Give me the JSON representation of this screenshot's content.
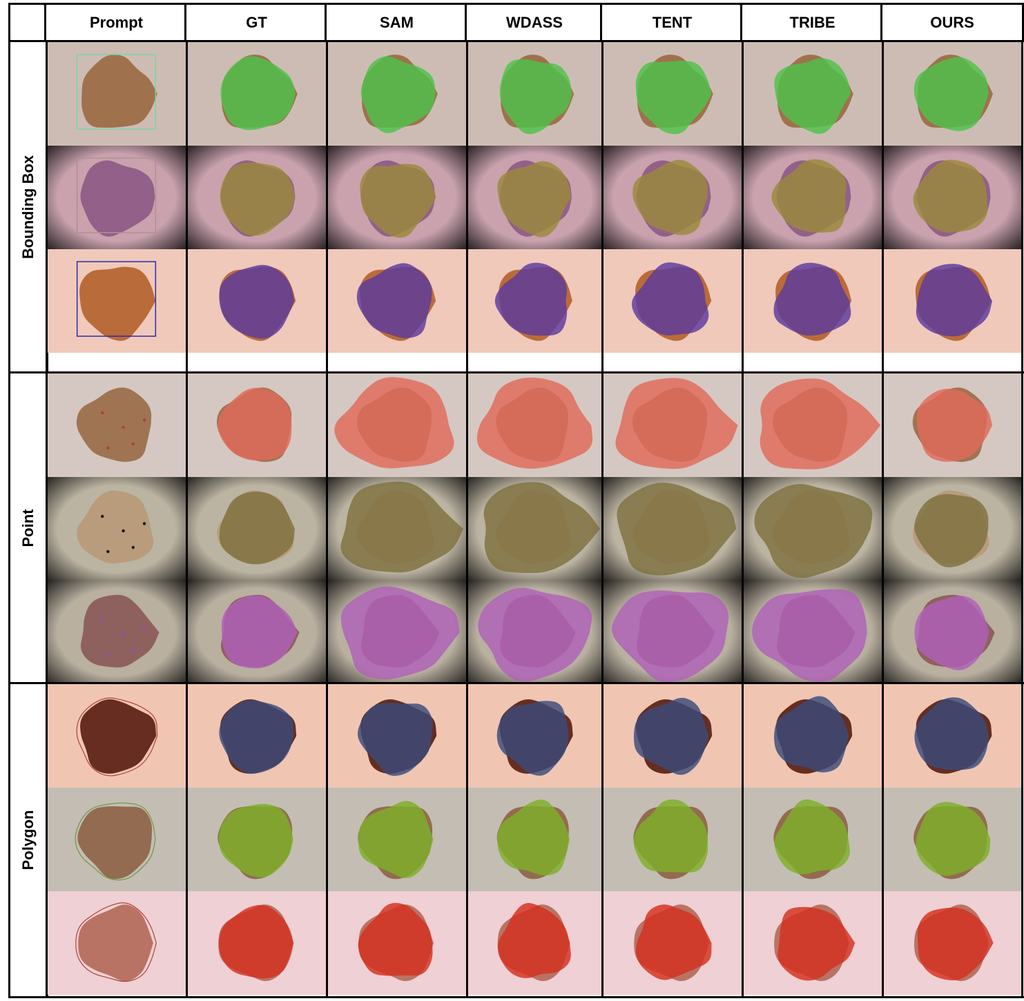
{
  "columns": [
    "Prompt",
    "GT",
    "SAM",
    "WDASS",
    "TENT",
    "TRIBE",
    "OURS"
  ],
  "groups": [
    "Bounding Box",
    "Point",
    "Polygon"
  ],
  "rows": [
    {
      "group": "Bounding Box",
      "skin": "#cdbcb4",
      "lesion": "#9c6a44",
      "mask": "#4ec24b",
      "prompt": "box",
      "promptColor": "#7bd3a0",
      "vignette": false
    },
    {
      "group": "Bounding Box",
      "skin": "#c9a2ae",
      "lesion": "#8e5a86",
      "mask": "#9b8a3a",
      "prompt": "box",
      "promptColor": "#b48f92",
      "vignette": true
    },
    {
      "group": "Bounding Box",
      "skin": "#f0c9ba",
      "lesion": "#b5632f",
      "mask": "#5c3a9e",
      "prompt": "box",
      "promptColor": "#2a2aa8",
      "vignette": false
    },
    {
      "group": "Point",
      "skin": "#d5c8c2",
      "lesion": "#9a6d4a",
      "mask": "#e06a5a",
      "prompt": "points",
      "promptColor": "#b04030",
      "vignette": false
    },
    {
      "group": "Point",
      "skin": "#bcb4a2",
      "lesion": "#b89a78",
      "mask": "#7e7040",
      "prompt": "points",
      "promptColor": "#111111",
      "vignette": true
    },
    {
      "group": "Point",
      "skin": "#b9b0a0",
      "lesion": "#8a5a58",
      "mask": "#b060b8",
      "prompt": "points",
      "promptColor": "#a040c0",
      "vignette": true
    },
    {
      "group": "Polygon",
      "skin": "#f0c6b3",
      "lesion": "#5a2014",
      "mask": "#3a4a7a",
      "prompt": "polygon",
      "promptColor": "#b04030",
      "vignette": false
    },
    {
      "group": "Polygon",
      "skin": "#c4bdb3",
      "lesion": "#8e6448",
      "mask": "#7fb02a",
      "prompt": "polygon",
      "promptColor": "#6a9a40",
      "vignette": false
    },
    {
      "group": "Polygon",
      "skin": "#efd0d4",
      "lesion": "#b46a5a",
      "mask": "#d42f1e",
      "prompt": "polygon",
      "promptColor": "#b04030",
      "vignette": false
    }
  ]
}
